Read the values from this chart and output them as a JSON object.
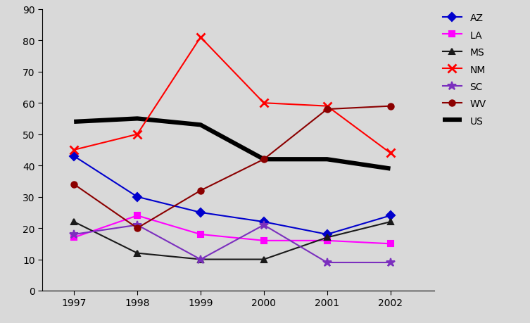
{
  "years": [
    1997,
    1998,
    1999,
    2000,
    2001,
    2002
  ],
  "series": {
    "AZ": {
      "values": [
        43,
        30,
        25,
        22,
        18,
        24
      ],
      "color": "#0000CD",
      "marker": "D",
      "linewidth": 1.5,
      "markersize": 6
    },
    "LA": {
      "values": [
        17,
        24,
        18,
        16,
        16,
        15
      ],
      "color": "#FF00FF",
      "marker": "s",
      "linewidth": 1.5,
      "markersize": 6
    },
    "MS": {
      "values": [
        22,
        12,
        10,
        10,
        17,
        22
      ],
      "color": "#1a1a1a",
      "marker": "^",
      "linewidth": 1.5,
      "markersize": 6
    },
    "NM": {
      "values": [
        45,
        50,
        81,
        60,
        59,
        44
      ],
      "color": "#FF0000",
      "marker": "x",
      "linewidth": 1.5,
      "markersize": 8,
      "markeredgewidth": 2.0
    },
    "SC": {
      "values": [
        18,
        21,
        10,
        21,
        9,
        9
      ],
      "color": "#7B2FBE",
      "marker": "*",
      "linewidth": 1.5,
      "markersize": 9
    },
    "WV": {
      "values": [
        34,
        20,
        32,
        42,
        58,
        59
      ],
      "color": "#8B0000",
      "marker": "o",
      "linewidth": 1.5,
      "markersize": 6
    },
    "US": {
      "values": [
        54,
        55,
        53,
        42,
        42,
        39
      ],
      "color": "#000000",
      "marker": "none",
      "linewidth": 4.5,
      "markersize": 0
    }
  },
  "xlim": [
    1996.5,
    2002.7
  ],
  "ylim": [
    0,
    90
  ],
  "yticks": [
    0,
    10,
    20,
    30,
    40,
    50,
    60,
    70,
    80,
    90
  ],
  "xticks": [
    1997,
    1998,
    1999,
    2000,
    2001,
    2002
  ],
  "legend_order": [
    "AZ",
    "LA",
    "MS",
    "NM",
    "SC",
    "WV",
    "US"
  ],
  "background_color": "#D9D9D9",
  "plot_bg_color": "#D9D9D9",
  "figsize": [
    7.53,
    4.6
  ],
  "dpi": 100
}
